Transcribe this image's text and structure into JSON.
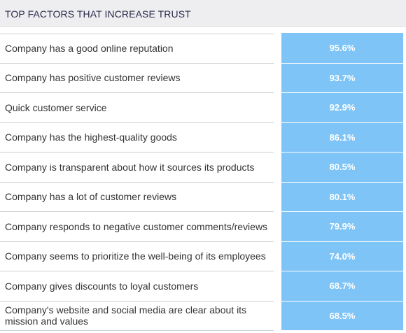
{
  "header": {
    "title": "TOP FACTORS THAT INCREASE TRUST"
  },
  "chart_data": {
    "type": "table",
    "title": "TOP FACTORS THAT INCREASE TRUST",
    "rows": [
      {
        "label": "Company has a good online reputation",
        "value": "95.6%"
      },
      {
        "label": "Company has positive customer reviews",
        "value": "93.7%"
      },
      {
        "label": "Quick customer service",
        "value": "92.9%"
      },
      {
        "label": "Company has the highest-quality goods",
        "value": "86.1%"
      },
      {
        "label": "Company is transparent about how it sources its products",
        "value": "80.5%"
      },
      {
        "label": "Company has a lot of customer reviews",
        "value": "80.1%"
      },
      {
        "label": "Company responds to negative customer comments/reviews",
        "value": "79.9%"
      },
      {
        "label": "Company seems to prioritize the well-being of its employees",
        "value": "74.0%"
      },
      {
        "label": "Company gives discounts to loyal customers",
        "value": "68.7%"
      },
      {
        "label": "Company's website and social media are clear about its mission and values",
        "value": "68.5%"
      }
    ],
    "colors": {
      "value_cell": "#7fc4f6",
      "value_text": "#ffffff",
      "header_bg": "#eeeef0"
    }
  }
}
